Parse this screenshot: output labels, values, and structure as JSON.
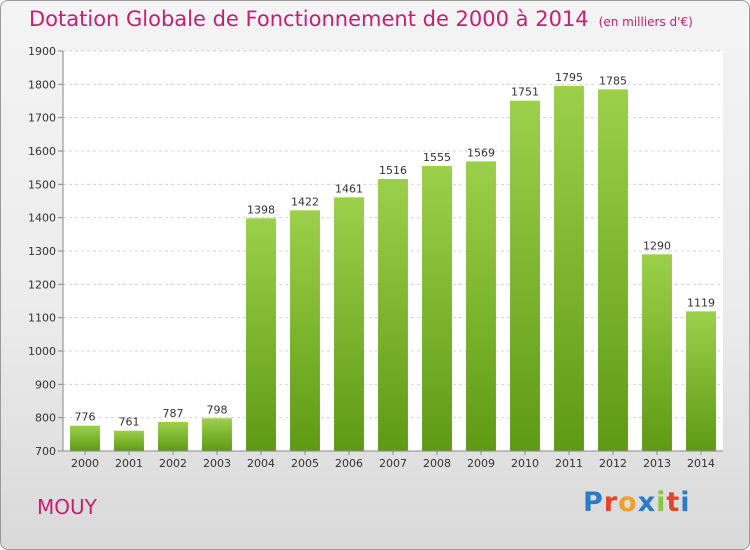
{
  "header": {
    "title": "Dotation Globale de Fonctionnement de 2000 à 2014",
    "unit": "(en milliers d'€)"
  },
  "footer": {
    "city": "MOUY",
    "brand_letters": [
      "P",
      "r",
      "o",
      "x",
      "i",
      "t",
      "i"
    ],
    "brand_colors": [
      "#2a7cc7",
      "#e8432a",
      "#f0a12b",
      "#2a7cc7",
      "#8cc63f",
      "#e8432a",
      "#2a7cc7"
    ]
  },
  "colors": {
    "accent": "#c8206f",
    "bar_top": "#9cd04a",
    "bar_bottom": "#5f9a14"
  },
  "chart_data": {
    "type": "bar",
    "categories": [
      "2000",
      "2001",
      "2002",
      "2003",
      "2004",
      "2005",
      "2006",
      "2007",
      "2008",
      "2009",
      "2010",
      "2011",
      "2012",
      "2013",
      "2014"
    ],
    "values": [
      776,
      761,
      787,
      798,
      1398,
      1422,
      1461,
      1516,
      1555,
      1569,
      1751,
      1795,
      1785,
      1290,
      1119
    ],
    "data_labels": [
      "776",
      "761",
      "787",
      "798",
      "1398",
      "1422",
      "1461",
      "1516",
      "1555",
      "1569",
      "1751",
      "1795",
      "1785",
      "1290",
      "1119"
    ],
    "ylim": [
      700,
      1900
    ],
    "yticks": [
      "700",
      "800",
      "900",
      "1000",
      "1100",
      "1200",
      "1300",
      "1400",
      "1500",
      "1600",
      "1700",
      "1800",
      "1900"
    ],
    "grid": true,
    "legend": "none"
  }
}
